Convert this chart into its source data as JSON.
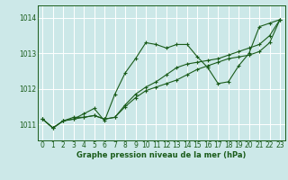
{
  "title": "Graphe pression niveau de la mer (hPa)",
  "bg_color": "#cce8e8",
  "grid_color": "#ffffff",
  "line_color": "#1a5c1a",
  "xlim": [
    -0.5,
    23.5
  ],
  "ylim": [
    1010.55,
    1014.35
  ],
  "yticks": [
    1011,
    1012,
    1013,
    1014
  ],
  "xticks": [
    0,
    1,
    2,
    3,
    4,
    5,
    6,
    7,
    8,
    9,
    10,
    11,
    12,
    13,
    14,
    15,
    16,
    17,
    18,
    19,
    20,
    21,
    22,
    23
  ],
  "series": [
    [
      1011.15,
      1010.9,
      1011.1,
      1011.15,
      1011.3,
      1011.45,
      1011.1,
      1011.85,
      1012.45,
      1012.85,
      1013.3,
      1013.25,
      1013.15,
      1013.25,
      1013.25,
      1012.9,
      1012.6,
      1012.15,
      1012.2,
      1012.65,
      1013.0,
      1013.75,
      1013.85,
      1013.95
    ],
    [
      1011.15,
      1010.9,
      1011.1,
      1011.2,
      1011.2,
      1011.25,
      1011.15,
      1011.2,
      1011.55,
      1011.85,
      1012.05,
      1012.2,
      1012.4,
      1012.6,
      1012.7,
      1012.75,
      1012.8,
      1012.85,
      1012.95,
      1013.05,
      1013.15,
      1013.25,
      1013.5,
      1013.95
    ],
    [
      1011.15,
      1010.9,
      1011.1,
      1011.15,
      1011.2,
      1011.25,
      1011.15,
      1011.2,
      1011.5,
      1011.75,
      1011.95,
      1012.05,
      1012.15,
      1012.25,
      1012.4,
      1012.55,
      1012.65,
      1012.75,
      1012.85,
      1012.9,
      1012.95,
      1013.05,
      1013.3,
      1013.95
    ]
  ]
}
